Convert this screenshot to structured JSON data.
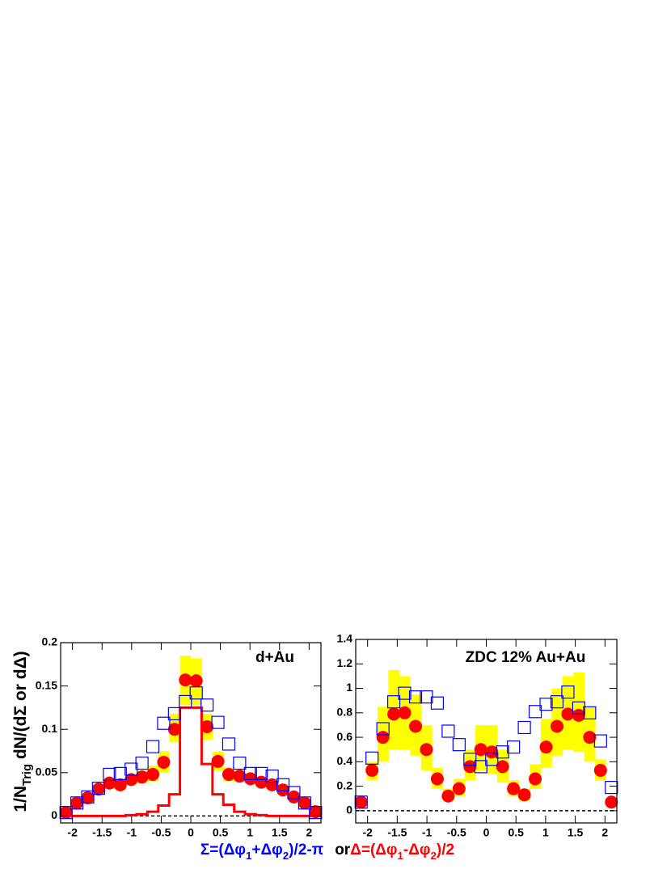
{
  "chart_data": [
    {
      "type": "hist",
      "title": "d+Au",
      "bins": [
        -2.2,
        -2.0167,
        -1.8333,
        -1.65,
        -1.4667,
        -1.2833,
        -1.1,
        -0.9167,
        -0.7333,
        -0.55,
        -0.3667,
        -0.1833,
        0,
        0.1833,
        0.3667,
        0.55,
        0.7333,
        0.9167,
        1.1,
        1.2833,
        1.4667,
        1.65,
        1.8333,
        2.0167,
        2.2
      ],
      "xlim": [
        -2.2,
        2.2
      ],
      "xticks": [
        -2,
        -1.5,
        -1,
        -0.5,
        0,
        0.5,
        1,
        1.5,
        2
      ],
      "ylim": [
        -0.008,
        0.2
      ],
      "yticks": [
        0,
        0.05,
        0.1,
        0.15,
        0.2
      ],
      "band": {
        "color": "#ffff00",
        "low": [
          0.002,
          0.012,
          0.017,
          0.026,
          0.032,
          0.03,
          0.036,
          0.038,
          0.04,
          0.05,
          0.085,
          0.128,
          0.128,
          0.088,
          0.052,
          0.04,
          0.039,
          0.037,
          0.034,
          0.031,
          0.026,
          0.018,
          0.012,
          0.002
        ],
        "high": [
          0.006,
          0.017,
          0.025,
          0.035,
          0.043,
          0.042,
          0.048,
          0.052,
          0.058,
          0.075,
          0.118,
          0.185,
          0.182,
          0.118,
          0.074,
          0.056,
          0.051,
          0.048,
          0.044,
          0.04,
          0.034,
          0.025,
          0.017,
          0.007
        ]
      },
      "step": {
        "color": "#ff0000",
        "values": [
          0,
          0,
          0,
          0,
          0,
          0,
          0.001,
          0.002,
          0.005,
          0.012,
          0.025,
          0.125,
          0.125,
          0.06,
          0.025,
          0.013,
          0.005,
          0.002,
          0.001,
          0,
          0,
          0,
          0,
          0
        ]
      },
      "circles": {
        "color": "#ff0000",
        "values": [
          0.004,
          0.015,
          0.021,
          0.031,
          0.038,
          0.036,
          0.042,
          0.045,
          0.048,
          0.062,
          0.1,
          0.157,
          0.156,
          0.103,
          0.063,
          0.048,
          0.046,
          0.043,
          0.039,
          0.036,
          0.03,
          0.022,
          0.015,
          0.005
        ]
      },
      "squares": {
        "color": "#0000ff",
        "values": [
          0.004,
          0.015,
          0.022,
          0.032,
          0.048,
          0.049,
          0.054,
          0.061,
          0.08,
          0.107,
          0.118,
          0.132,
          0.142,
          0.128,
          0.108,
          0.083,
          0.061,
          0.049,
          0.049,
          0.046,
          0.036,
          0.027,
          0.015,
          0.004
        ]
      }
    },
    {
      "type": "hist",
      "title": "ZDC 12% Au+Au",
      "bins": [
        -2.2,
        -2.0167,
        -1.8333,
        -1.65,
        -1.4667,
        -1.2833,
        -1.1,
        -0.9167,
        -0.7333,
        -0.55,
        -0.3667,
        -0.1833,
        0,
        0.1833,
        0.3667,
        0.55,
        0.7333,
        0.9167,
        1.1,
        1.2833,
        1.4667,
        1.65,
        1.8333,
        2.0167,
        2.2
      ],
      "xlim": [
        -2.2,
        2.2
      ],
      "xticks": [
        -2,
        -1.5,
        -1,
        -0.5,
        0,
        0.5,
        1,
        1.5,
        2
      ],
      "ylim": [
        -0.1,
        1.4
      ],
      "yticks": [
        0,
        0.2,
        0.4,
        0.6,
        0.8,
        1,
        1.2,
        1.4
      ],
      "band": {
        "color": "#ffff00",
        "low": [
          0.05,
          0.25,
          0.4,
          0.5,
          0.5,
          0.45,
          0.33,
          0.18,
          0.08,
          0.12,
          0.25,
          0.33,
          0.3,
          0.23,
          0.12,
          0.08,
          0.18,
          0.35,
          0.45,
          0.5,
          0.48,
          0.4,
          0.25,
          0.05
        ],
        "high": [
          0.1,
          0.4,
          0.85,
          1.15,
          1.1,
          0.95,
          0.7,
          0.35,
          0.18,
          0.26,
          0.5,
          0.7,
          0.7,
          0.5,
          0.25,
          0.18,
          0.38,
          0.75,
          1.0,
          1.1,
          1.13,
          0.85,
          0.42,
          0.1
        ]
      },
      "circles": {
        "color": "#ff0000",
        "values": [
          0.07,
          0.33,
          0.6,
          0.79,
          0.8,
          0.69,
          0.5,
          0.26,
          0.12,
          0.18,
          0.36,
          0.5,
          0.48,
          0.36,
          0.18,
          0.13,
          0.26,
          0.52,
          0.69,
          0.79,
          0.78,
          0.6,
          0.33,
          0.07
        ]
      },
      "squares": {
        "color": "#0000ff",
        "values": [
          0.07,
          0.43,
          0.67,
          0.89,
          0.96,
          0.93,
          0.93,
          0.88,
          0.65,
          0.54,
          0.42,
          0.36,
          0.42,
          0.48,
          0.52,
          0.68,
          0.81,
          0.87,
          0.89,
          0.97,
          0.84,
          0.8,
          0.57,
          0.19
        ]
      }
    }
  ],
  "ylabel": [
    "1/N",
    "Trig",
    " dN/(dΣ or dΔ)"
  ],
  "xlabel": {
    "sum": [
      "Σ=(Δφ",
      "1",
      "+Δφ",
      "2",
      ")/2-π"
    ],
    "sum_color": "#0000ff",
    "or": "or",
    "diff": [
      "Δ=(Δφ",
      "1",
      "-Δφ",
      "2",
      ")/2"
    ],
    "diff_color": "#ff0000"
  }
}
